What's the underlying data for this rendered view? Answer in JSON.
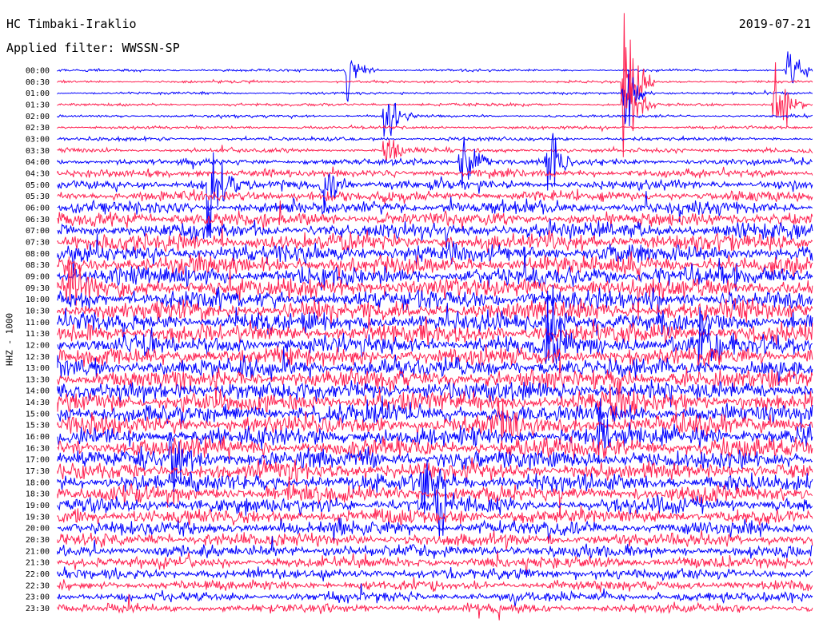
{
  "header": {
    "station": "HC Timbaki-Iraklio",
    "date": "2019-07-21",
    "filter": "Applied filter: WWSSN-SP",
    "channel_label": "HHZ - 1000"
  },
  "chart_data": {
    "type": "line",
    "title": "HC Timbaki-Iraklio",
    "subtitle": "Applied filter: WWSSN-SP",
    "ylabel": "HHZ - 1000",
    "xlabel": "",
    "row_interval_minutes": 30,
    "rows": [
      "00:00",
      "00:30",
      "01:00",
      "01:30",
      "02:00",
      "02:30",
      "03:00",
      "03:30",
      "04:00",
      "04:30",
      "05:00",
      "05:30",
      "06:00",
      "06:30",
      "07:00",
      "07:30",
      "08:00",
      "08:30",
      "09:00",
      "09:30",
      "10:00",
      "10:30",
      "11:00",
      "11:30",
      "12:00",
      "12:30",
      "13:00",
      "13:30",
      "14:00",
      "14:30",
      "15:00",
      "15:30",
      "16:00",
      "16:30",
      "17:00",
      "17:30",
      "18:00",
      "18:30",
      "19:00",
      "19:30",
      "20:00",
      "20:30",
      "21:00",
      "21:30",
      "22:00",
      "22:30",
      "23:00",
      "23:30"
    ],
    "colors": [
      "#0000ff",
      "#ff2050"
    ],
    "noise_level": [
      0.08,
      0.08,
      0.08,
      0.09,
      0.09,
      0.1,
      0.12,
      0.15,
      0.2,
      0.25,
      0.3,
      0.35,
      0.4,
      0.45,
      0.5,
      0.55,
      0.58,
      0.6,
      0.62,
      0.62,
      0.62,
      0.62,
      0.62,
      0.62,
      0.62,
      0.62,
      0.62,
      0.62,
      0.62,
      0.62,
      0.62,
      0.62,
      0.62,
      0.62,
      0.6,
      0.58,
      0.55,
      0.52,
      0.5,
      0.48,
      0.45,
      0.42,
      0.4,
      0.38,
      0.35,
      0.32,
      0.3,
      0.28
    ],
    "events": [
      {
        "row": 0,
        "minute": 11.5,
        "amp": 0.8
      },
      {
        "row": 0,
        "minute": 29.0,
        "amp": 0.8
      },
      {
        "row": 1,
        "minute": 22.5,
        "amp": 2.5
      },
      {
        "row": 2,
        "minute": 22.5,
        "amp": 1.5
      },
      {
        "row": 3,
        "minute": 22.5,
        "amp": 1.8
      },
      {
        "row": 3,
        "minute": 28.5,
        "amp": 1.6
      },
      {
        "row": 4,
        "minute": 13.0,
        "amp": 1.0
      },
      {
        "row": 7,
        "minute": 13.0,
        "amp": 0.8
      },
      {
        "row": 8,
        "minute": 16.0,
        "amp": 1.3
      },
      {
        "row": 8,
        "minute": 19.5,
        "amp": 1.5
      },
      {
        "row": 10,
        "minute": 6.0,
        "amp": 1.8
      },
      {
        "row": 10,
        "minute": 10.5,
        "amp": 1.2
      },
      {
        "row": 19,
        "minute": 0.5,
        "amp": 0.9
      },
      {
        "row": 22,
        "minute": 19.5,
        "amp": 1.0
      },
      {
        "row": 24,
        "minute": 19.5,
        "amp": 1.0
      },
      {
        "row": 24,
        "minute": 25.5,
        "amp": 0.9
      },
      {
        "row": 29,
        "minute": 22.0,
        "amp": 0.9
      },
      {
        "row": 31,
        "minute": 17.5,
        "amp": 0.8
      },
      {
        "row": 32,
        "minute": 21.5,
        "amp": 0.9
      },
      {
        "row": 34,
        "minute": 4.5,
        "amp": 0.8
      },
      {
        "row": 36,
        "minute": 14.5,
        "amp": 0.9
      },
      {
        "row": 38,
        "minute": 15.0,
        "amp": 1.0
      }
    ]
  }
}
